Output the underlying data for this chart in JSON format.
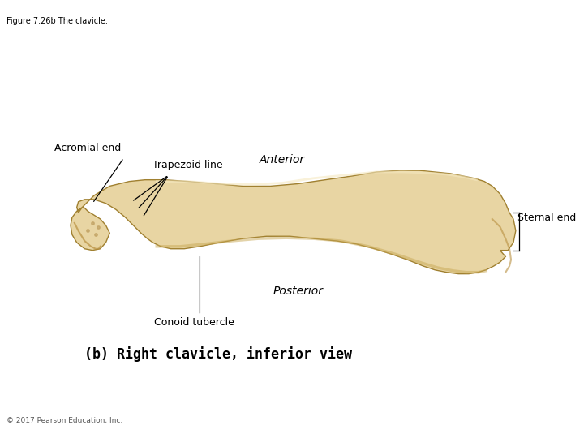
{
  "title": "Figure 7.26b The clavicle.",
  "background_color": "#ffffff",
  "subtitle": "(b) Right clavicle, inferior view",
  "copyright": "© 2017 Pearson Education, Inc.",
  "labels": {
    "acromial_end": "Acromial end",
    "trapezoid_line": "Trapezoid line",
    "anterior": "Anterior",
    "sternal_end": "Sternal end",
    "posterior": "Posterior",
    "conoid_tubercle": "Conoid tubercle"
  },
  "bone_color": "#e8d5a3",
  "bone_dark": "#c8b070",
  "bone_shadow": "#d4b87a"
}
